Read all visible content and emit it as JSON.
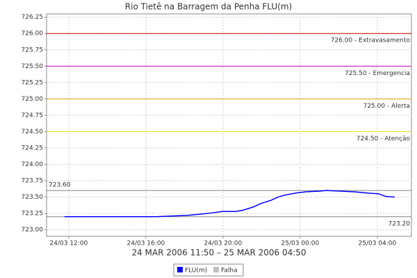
{
  "chart_data": {
    "type": "line",
    "title": "Rio Tietê na Barragem da Penha FLU(m)",
    "subtitle": "24 MAR 2006 11:50 – 25 MAR 2006 04:50",
    "x": [
      11.78,
      16.54,
      18.16,
      19.24,
      19.96,
      20.68,
      21.05,
      21.59,
      21.95,
      22.49,
      22.85,
      23.21,
      23.75,
      24.29,
      25.01,
      25.37,
      26.09,
      26.81,
      27.53,
      28.07,
      28.43,
      28.9
    ],
    "series": [
      {
        "name": "FLU(m)",
        "color": "#0000ff",
        "values": [
          723.2,
          723.2,
          723.22,
          723.25,
          723.28,
          723.28,
          723.3,
          723.35,
          723.4,
          723.45,
          723.5,
          723.53,
          723.56,
          723.58,
          723.59,
          723.6,
          723.59,
          723.58,
          723.56,
          723.55,
          723.51,
          723.5
        ]
      },
      {
        "name": "Falha",
        "color": "#c0c0c0",
        "values": [
          null,
          null,
          null,
          null,
          null,
          null,
          null,
          null,
          null,
          null,
          null,
          null,
          null,
          null,
          null,
          null,
          null,
          null,
          null,
          null,
          null,
          null
        ]
      }
    ],
    "xlim": [
      10.85,
      29.77
    ],
    "xticks": [
      {
        "value": 12,
        "label": "24/03 12:00"
      },
      {
        "value": 16,
        "label": "24/03 16:00"
      },
      {
        "value": 20,
        "label": "24/03 20:00"
      },
      {
        "value": 24,
        "label": "25/03 00:00"
      },
      {
        "value": 28,
        "label": "25/03 04:00"
      }
    ],
    "ylim": [
      722.9,
      726.3
    ],
    "yticks": [
      {
        "value": 723,
        "label": "723.00"
      },
      {
        "value": 723.25,
        "label": "723.25"
      },
      {
        "value": 723.5,
        "label": "723.50"
      },
      {
        "value": 723.75,
        "label": "723.75"
      },
      {
        "value": 724,
        "label": "724.00"
      },
      {
        "value": 724.25,
        "label": "724.25"
      },
      {
        "value": 724.5,
        "label": "724.50"
      },
      {
        "value": 724.75,
        "label": "724.75"
      },
      {
        "value": 725,
        "label": "725.00"
      },
      {
        "value": 725.25,
        "label": "725.25"
      },
      {
        "value": 725.5,
        "label": "725.50"
      },
      {
        "value": 725.75,
        "label": "725.75"
      },
      {
        "value": 726,
        "label": "726.00"
      },
      {
        "value": 726.25,
        "label": "726.25"
      }
    ],
    "grid": true,
    "thresholds": [
      {
        "value": 726,
        "label": "726.00 - Extravasamento",
        "color": "#c00000",
        "side": "right"
      },
      {
        "value": 725.5,
        "label": "725.50 - Emergencia",
        "color": "#c000c0",
        "side": "right"
      },
      {
        "value": 725,
        "label": "725.00 - Alerta",
        "color": "#e0a000",
        "side": "right"
      },
      {
        "value": 724.5,
        "label": "724.50 - Atenção",
        "color": "#f0e000",
        "side": "right"
      },
      {
        "value": 723.6,
        "label": "723.60",
        "color": "#808080",
        "side": "left"
      },
      {
        "value": 723.2,
        "label": "723.20",
        "color": "#808080",
        "side": "right"
      }
    ]
  }
}
